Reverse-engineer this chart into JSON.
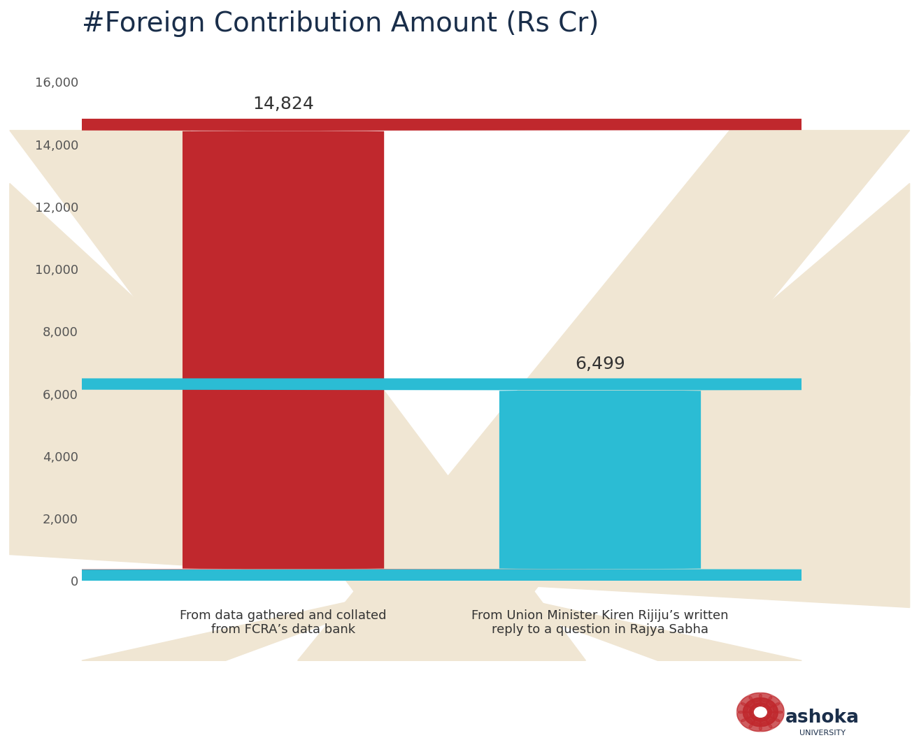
{
  "title": "#Foreign Contribution Amount (Rs Cr)",
  "title_color": "#1a2e4a",
  "title_fontsize": 28,
  "categories": [
    "From data gathered and collated\nfrom FCRA’s data bank",
    "From Union Minister Kiren Rijiju’s written\nreply to a question in Rajya Sabha"
  ],
  "values": [
    14824,
    6499
  ],
  "bar_colors": [
    "#c0282d",
    "#2bbcd4"
  ],
  "value_labels": [
    "14,824",
    "6,499"
  ],
  "ylim": [
    0,
    17000
  ],
  "yticks": [
    0,
    2000,
    4000,
    6000,
    8000,
    10000,
    12000,
    14000,
    16000
  ],
  "ytick_labels": [
    "0",
    "2,000",
    "4,000",
    "6,000",
    "8,000",
    "10,000",
    "12,000",
    "14,000",
    "16,000"
  ],
  "background_color": "#ffffff",
  "tick_color": "#555555",
  "label_fontsize": 13,
  "value_fontsize": 18,
  "bar_width": 0.28,
  "bar_positions": [
    0.28,
    0.72
  ],
  "bg_shape_color": "#f0e6d3"
}
